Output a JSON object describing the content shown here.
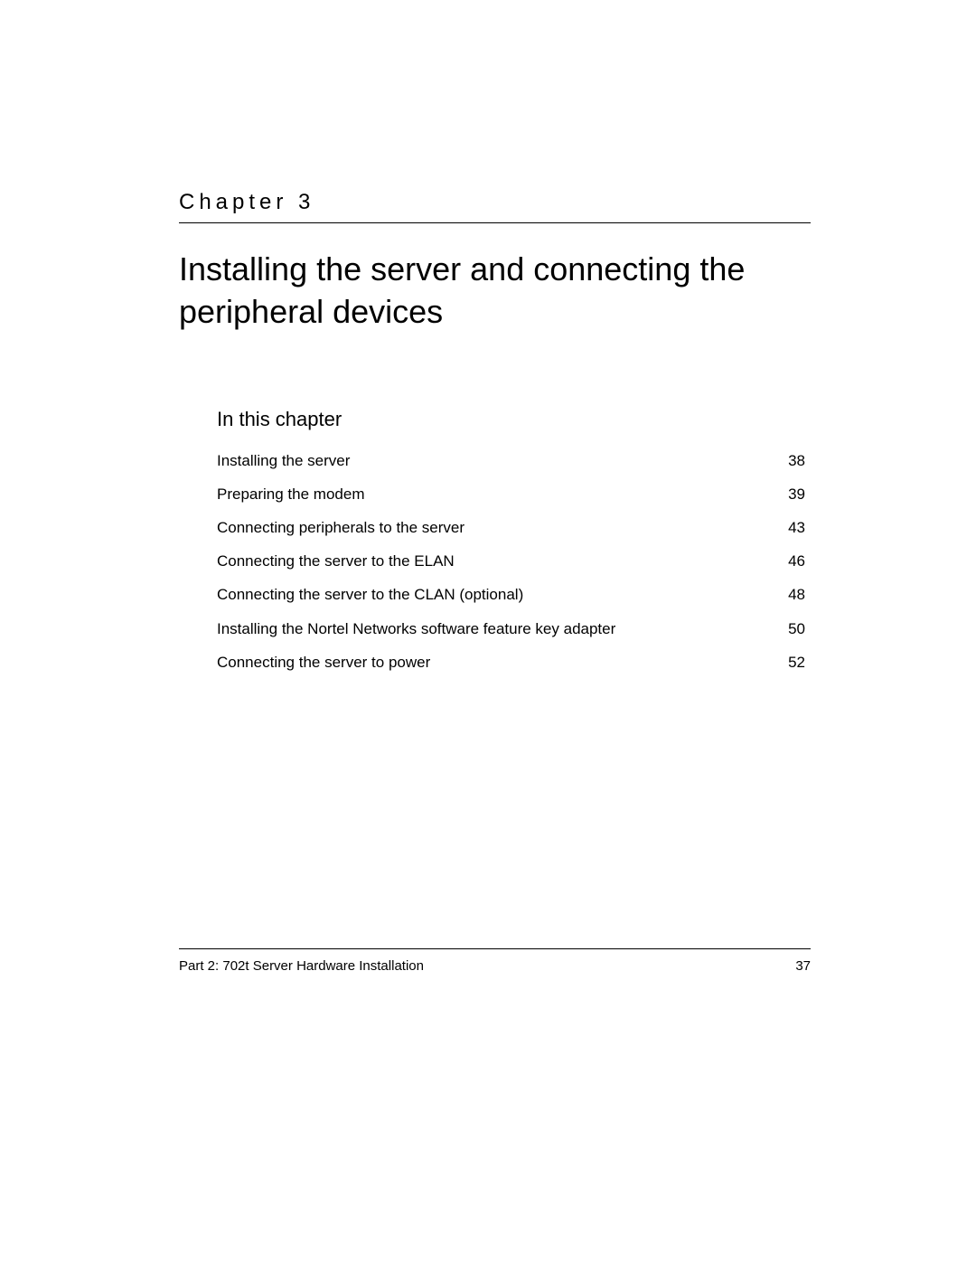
{
  "chapter": {
    "label": "Chapter 3",
    "title": "Installing the server and connecting the peripheral devices"
  },
  "toc": {
    "heading": "In this chapter",
    "items": [
      {
        "label": "Installing the server",
        "page": "38"
      },
      {
        "label": "Preparing the modem",
        "page": "39"
      },
      {
        "label": "Connecting peripherals to the server",
        "page": "43"
      },
      {
        "label": "Connecting the server to the ELAN",
        "page": "46"
      },
      {
        "label": "Connecting the server to the CLAN (optional)",
        "page": "48"
      },
      {
        "label": "Installing the Nortel Networks software feature key adapter",
        "page": "50"
      },
      {
        "label": "Connecting the server to power",
        "page": "52"
      }
    ]
  },
  "footer": {
    "text": "Part 2: 702t Server Hardware Installation",
    "page_number": "37"
  },
  "style": {
    "background_color": "#ffffff",
    "text_color": "#000000",
    "rule_color": "#000000",
    "chapter_label_fontsize": 24,
    "chapter_label_letterspacing": 5,
    "chapter_title_fontsize": 36,
    "toc_heading_fontsize": 22,
    "toc_item_fontsize": 17,
    "footer_fontsize": 15
  }
}
